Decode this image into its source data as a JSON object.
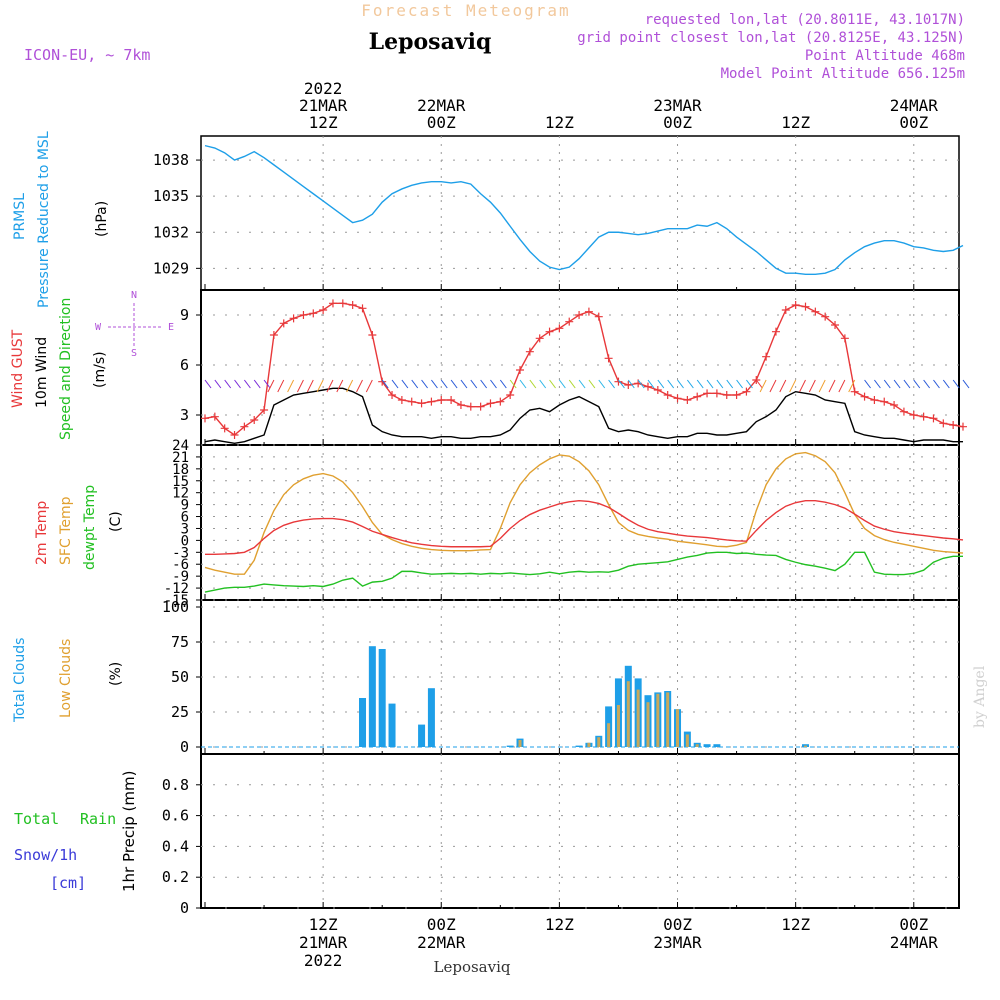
{
  "header": {
    "top_title": "Forecast Meteogram",
    "station": "Leposaviq",
    "model": "ICON-EU, ~ 7km",
    "requested": "requested lon,lat (20.8011E, 43.1017N)",
    "grid_point": "grid point closest lon,lat (20.8125E, 43.125N)",
    "point_alt": "Point Altitude 468m",
    "model_alt": "Model Point Altitude 656.125m",
    "credit": "by Angel",
    "footer_station": "Leposaviq"
  },
  "time_axis": {
    "top_ticks": [
      {
        "t": 12,
        "lines": [
          "2022",
          "21MAR",
          "12Z"
        ]
      },
      {
        "t": 24,
        "lines": [
          "22MAR",
          "00Z"
        ]
      },
      {
        "t": 36,
        "lines": [
          "12Z"
        ]
      },
      {
        "t": 48,
        "lines": [
          "23MAR",
          "00Z"
        ]
      },
      {
        "t": 60,
        "lines": [
          "12Z"
        ]
      },
      {
        "t": 72,
        "lines": [
          "24MAR",
          "00Z"
        ]
      }
    ],
    "bottom_ticks": [
      {
        "t": 12,
        "lines": [
          "12Z",
          "21MAR",
          "2022"
        ]
      },
      {
        "t": 24,
        "lines": [
          "00Z",
          "22MAR"
        ]
      },
      {
        "t": 36,
        "lines": [
          "12Z"
        ]
      },
      {
        "t": 48,
        "lines": [
          "00Z",
          "23MAR"
        ]
      },
      {
        "t": 60,
        "lines": [
          "12Z"
        ]
      },
      {
        "t": 72,
        "lines": [
          "00Z",
          "24MAR"
        ]
      }
    ]
  },
  "panels": {
    "pressure": {
      "label1": "PRMSL",
      "label2": "Pressure Reduced to MSL",
      "unit": "(hPa)",
      "color_label": "#1e9fe8"
    },
    "wind": {
      "label_gust": "Wind GUST",
      "label_wind": "10m Wind",
      "label_dir": "Speed and Direction",
      "unit": "(m/s)",
      "compass_n": "N",
      "compass_s": "S",
      "compass_w": "W",
      "compass_e": "E"
    },
    "temp": {
      "label1": "2m Temp",
      "label2": "SFC Temp",
      "label3": "dewpt Temp",
      "unit": "(C)"
    },
    "clouds": {
      "label1": "Total Clouds",
      "label2": "Low Clouds",
      "unit": "(%)"
    },
    "precip": {
      "label1": "Total",
      "label2": "Rain",
      "label3": "Snow/1h",
      "label4": "[cm]",
      "ylabel": "1hr Precip (mm)"
    }
  },
  "colors": {
    "pressure": "#1e9fe8",
    "gust": "#e8383a",
    "wind": "#000000",
    "temp2m": "#e8383a",
    "sfc": "#e0a030",
    "dew": "#22c022",
    "total_clouds": "#1e9fe8",
    "low_clouds": "#c8a85a",
    "header_purple": "#b050d8",
    "title_orange": "#f2c89c",
    "rain": "#22c022",
    "snow": "#3a3ad8"
  },
  "chart_data": [
    {
      "type": "line",
      "title": "PRMSL Pressure Reduced to MSL",
      "ylabel": "(hPa)",
      "ylim": [
        1027.2,
        1040
      ],
      "yticks": [
        1029,
        1032,
        1035,
        1038
      ],
      "grid": true,
      "series": [
        {
          "name": "PRMSL",
          "x": [
            0,
            1,
            2,
            3,
            4,
            5,
            6,
            7,
            8,
            9,
            10,
            11,
            12,
            13,
            14,
            15,
            16,
            17,
            18,
            19,
            20,
            21,
            22,
            23,
            24,
            25,
            26,
            27,
            28,
            29,
            30,
            31,
            32,
            33,
            34,
            35,
            36,
            37,
            38,
            39,
            40,
            41,
            42,
            43,
            44,
            45,
            46,
            47,
            48,
            49,
            50,
            51,
            52,
            53,
            54,
            55,
            56,
            57,
            58,
            59,
            60,
            61,
            62,
            63,
            64,
            65,
            66,
            67,
            68,
            69,
            70,
            71,
            72,
            73,
            74,
            75,
            76,
            77
          ],
          "values": [
            1039.2,
            1039.0,
            1038.6,
            1038.0,
            1038.3,
            1038.7,
            1038.2,
            1037.6,
            1037.0,
            1036.4,
            1035.8,
            1035.2,
            1034.6,
            1034.0,
            1033.4,
            1032.8,
            1033.0,
            1033.5,
            1034.5,
            1035.2,
            1035.6,
            1035.9,
            1036.1,
            1036.2,
            1036.2,
            1036.1,
            1036.2,
            1036.0,
            1035.2,
            1034.5,
            1033.6,
            1032.5,
            1031.4,
            1030.4,
            1029.6,
            1029.1,
            1028.9,
            1029.1,
            1029.8,
            1030.7,
            1031.6,
            1032.0,
            1032.0,
            1031.9,
            1031.8,
            1031.9,
            1032.1,
            1032.3,
            1032.3,
            1032.3,
            1032.6,
            1032.5,
            1032.8,
            1032.3,
            1031.6,
            1031.0,
            1030.4,
            1029.7,
            1029.0,
            1028.6,
            1028.6,
            1028.5,
            1028.5,
            1028.6,
            1028.9,
            1029.7,
            1030.3,
            1030.8,
            1031.1,
            1031.3,
            1031.3,
            1031.1,
            1030.8,
            1030.7,
            1030.5,
            1030.4,
            1030.5,
            1030.9
          ]
        }
      ]
    },
    {
      "type": "line",
      "title": "Wind GUST / 10m Wind Speed and Direction",
      "ylabel": "(m/s)",
      "ylim": [
        1.2,
        10.5
      ],
      "yticks": [
        3,
        6,
        9
      ],
      "grid": true,
      "series": [
        {
          "name": "Wind GUST",
          "values": [
            2.8,
            2.9,
            2.2,
            1.8,
            2.3,
            2.7,
            3.3,
            7.8,
            8.5,
            8.8,
            9.0,
            9.1,
            9.3,
            9.7,
            9.7,
            9.6,
            9.4,
            7.8,
            5.0,
            4.2,
            3.9,
            3.8,
            3.7,
            3.8,
            3.9,
            3.9,
            3.6,
            3.5,
            3.5,
            3.7,
            3.8,
            4.2,
            5.7,
            6.8,
            7.6,
            8.0,
            8.2,
            8.6,
            9.0,
            9.2,
            8.9,
            6.4,
            5.0,
            4.8,
            4.9,
            4.7,
            4.5,
            4.2,
            4.0,
            3.9,
            4.1,
            4.3,
            4.3,
            4.2,
            4.2,
            4.4,
            5.1,
            6.5,
            8.0,
            9.3,
            9.6,
            9.5,
            9.2,
            8.9,
            8.4,
            7.6,
            4.4,
            4.1,
            3.9,
            3.8,
            3.6,
            3.2,
            3.0,
            2.9,
            2.8,
            2.5,
            2.4,
            2.3
          ]
        },
        {
          "name": "10m Wind",
          "values": [
            1.4,
            1.5,
            1.4,
            1.3,
            1.4,
            1.6,
            1.8,
            3.6,
            3.9,
            4.2,
            4.3,
            4.4,
            4.5,
            4.6,
            4.6,
            4.4,
            4.1,
            2.4,
            2.0,
            1.8,
            1.7,
            1.7,
            1.7,
            1.6,
            1.7,
            1.7,
            1.6,
            1.6,
            1.7,
            1.7,
            1.8,
            2.1,
            2.8,
            3.3,
            3.4,
            3.2,
            3.6,
            3.9,
            4.1,
            3.8,
            3.5,
            2.2,
            2.0,
            2.1,
            2.0,
            1.8,
            1.7,
            1.6,
            1.7,
            1.7,
            1.9,
            1.9,
            1.8,
            1.8,
            1.9,
            2.0,
            2.6,
            2.9,
            3.3,
            4.1,
            4.4,
            4.3,
            4.2,
            3.9,
            3.8,
            3.7,
            2.0,
            1.8,
            1.7,
            1.6,
            1.6,
            1.5,
            1.4,
            1.5,
            1.5,
            1.5,
            1.4,
            1.4
          ]
        }
      ]
    },
    {
      "type": "line",
      "title": "2m Temp / SFC Temp / dewpt Temp",
      "ylabel": "(C)",
      "ylim": [
        -15,
        24
      ],
      "yticks": [
        -15,
        -12,
        -9,
        -6,
        -3,
        0,
        3,
        6,
        9,
        12,
        15,
        18,
        21,
        24
      ],
      "grid": true,
      "series": [
        {
          "name": "2m Temp",
          "values": [
            -3.5,
            -3.5,
            -3.4,
            -3.3,
            -3.0,
            -1.8,
            0.5,
            2.5,
            3.8,
            4.6,
            5.1,
            5.4,
            5.5,
            5.5,
            5.2,
            4.6,
            3.5,
            2.3,
            1.5,
            0.7,
            0.0,
            -0.6,
            -1.0,
            -1.3,
            -1.5,
            -1.6,
            -1.6,
            -1.6,
            -1.6,
            -1.5,
            0.5,
            3.0,
            5.0,
            6.5,
            7.6,
            8.4,
            9.2,
            9.7,
            10.0,
            9.8,
            9.3,
            8.3,
            6.8,
            5.2,
            3.8,
            2.8,
            2.2,
            1.8,
            1.4,
            1.1,
            0.9,
            0.7,
            0.4,
            0.1,
            -0.1,
            -0.2,
            2.5,
            5.0,
            7.0,
            8.6,
            9.5,
            10.0,
            10.0,
            9.6,
            9.0,
            8.1,
            6.6,
            5.0,
            3.6,
            2.8,
            2.2,
            1.8,
            1.5,
            1.2,
            0.9,
            0.6,
            0.4,
            0.1
          ]
        },
        {
          "name": "SFC Temp",
          "values": [
            -6.8,
            -7.5,
            -8.0,
            -8.5,
            -8.5,
            -5.0,
            2.0,
            7.5,
            11.5,
            14.0,
            15.5,
            16.4,
            16.8,
            16.2,
            14.7,
            12.0,
            8.5,
            4.5,
            1.5,
            0.2,
            -0.8,
            -1.5,
            -2.0,
            -2.3,
            -2.5,
            -2.6,
            -2.6,
            -2.6,
            -2.4,
            -2.3,
            3.0,
            9.5,
            14.0,
            17.0,
            19.0,
            20.5,
            21.5,
            21.2,
            19.8,
            17.5,
            14.0,
            9.0,
            4.5,
            2.5,
            1.5,
            1.0,
            0.6,
            0.3,
            -0.2,
            -0.5,
            -0.8,
            -1.1,
            -1.5,
            -1.6,
            -1.2,
            -0.5,
            7.5,
            14.0,
            18.0,
            20.5,
            21.8,
            22.1,
            21.3,
            19.8,
            17.0,
            12.0,
            6.5,
            3.0,
            1.2,
            0.2,
            -0.5,
            -1.0,
            -1.5,
            -2.0,
            -2.5,
            -2.8,
            -3.0,
            -3.2
          ]
        },
        {
          "name": "dewpt Temp",
          "values": [
            -13.0,
            -12.5,
            -12.0,
            -11.8,
            -11.8,
            -11.5,
            -11.0,
            -11.2,
            -11.4,
            -11.5,
            -11.6,
            -11.4,
            -11.6,
            -11.0,
            -10.0,
            -9.5,
            -11.5,
            -10.5,
            -10.3,
            -9.5,
            -7.8,
            -7.8,
            -8.2,
            -8.5,
            -8.4,
            -8.3,
            -8.4,
            -8.3,
            -8.5,
            -8.3,
            -8.4,
            -8.2,
            -8.4,
            -8.6,
            -8.4,
            -8.0,
            -8.4,
            -8.0,
            -7.8,
            -8.0,
            -7.9,
            -8.0,
            -7.5,
            -6.5,
            -6.0,
            -5.8,
            -5.6,
            -5.4,
            -4.8,
            -4.2,
            -3.8,
            -3.2,
            -3.0,
            -3.0,
            -3.3,
            -3.2,
            -3.5,
            -3.7,
            -3.8,
            -4.8,
            -5.5,
            -6.1,
            -6.5,
            -7.0,
            -7.6,
            -6.0,
            -3.0,
            -3.0,
            -8.0,
            -8.5,
            -8.6,
            -8.6,
            -8.3,
            -7.5,
            -5.5,
            -4.5,
            -4.0,
            -4.0
          ]
        }
      ]
    },
    {
      "type": "bar",
      "title": "Total Clouds / Low Clouds",
      "ylabel": "(%)",
      "ylim": [
        -5,
        105
      ],
      "yticks": [
        0,
        25,
        50,
        75,
        100
      ],
      "grid": true,
      "categories": [
        16,
        17,
        18,
        19,
        20,
        22,
        23,
        31,
        32,
        38,
        39,
        40,
        41,
        42,
        43,
        44,
        45,
        46,
        47,
        48,
        49,
        50,
        51,
        52,
        53,
        54,
        61
      ],
      "series": [
        {
          "name": "Total Clouds",
          "values": [
            35,
            72,
            70,
            31,
            0,
            16,
            42,
            1,
            6,
            1,
            3,
            8,
            29,
            49,
            58,
            49,
            37,
            39,
            40,
            27,
            11,
            3,
            2,
            2,
            0,
            0,
            2
          ]
        },
        {
          "name": "Low Clouds",
          "values": [
            0,
            0,
            0,
            0,
            0,
            0,
            0,
            0,
            5,
            0,
            3,
            7,
            17,
            30,
            47,
            41,
            32,
            38,
            39,
            27,
            9,
            2,
            0,
            0,
            0,
            0,
            1
          ]
        }
      ]
    },
    {
      "type": "line",
      "title": "1hr Precip",
      "ylabel": "1hr Precip (mm)",
      "ylim": [
        0,
        1
      ],
      "yticks": [
        0,
        0.2,
        0.4,
        0.6,
        0.8
      ],
      "grid": true,
      "series": [
        {
          "name": "Total Rain",
          "values": [
            0,
            0,
            0,
            0,
            0,
            0,
            0,
            0,
            0,
            0,
            0,
            0,
            0,
            0,
            0,
            0,
            0,
            0,
            0,
            0,
            0,
            0,
            0,
            0,
            0,
            0,
            0,
            0,
            0,
            0,
            0,
            0,
            0,
            0,
            0,
            0,
            0,
            0,
            0,
            0,
            0,
            0,
            0,
            0,
            0,
            0,
            0,
            0,
            0,
            0,
            0,
            0,
            0,
            0,
            0,
            0,
            0,
            0,
            0,
            0,
            0,
            0,
            0,
            0,
            0,
            0,
            0,
            0,
            0,
            0,
            0,
            0,
            0,
            0,
            0,
            0,
            0,
            0
          ]
        }
      ]
    }
  ]
}
